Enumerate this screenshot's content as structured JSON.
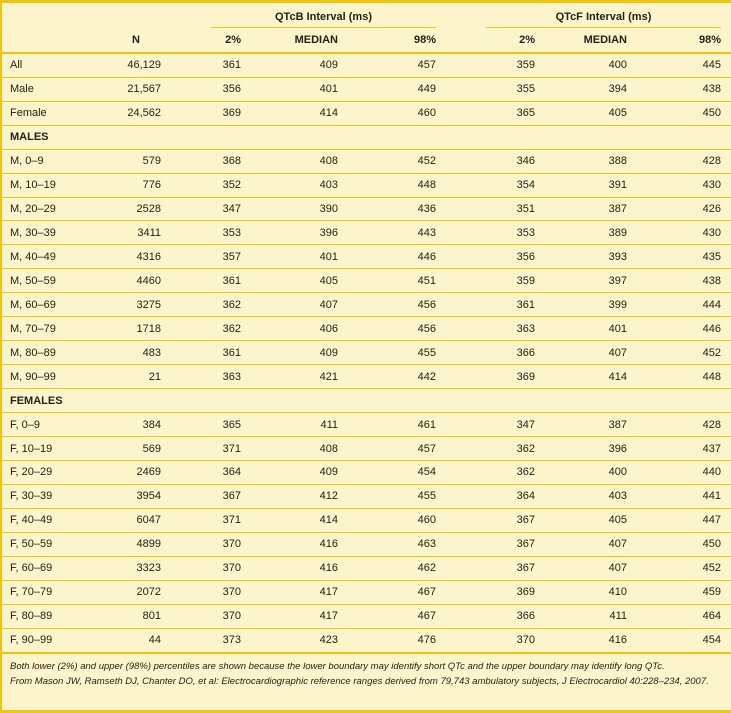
{
  "colors": {
    "background": "#FCF4CB",
    "line": "#F0C412",
    "text": "#262118"
  },
  "table": {
    "group_headers": [
      {
        "label": "QTcB Interval (ms)"
      },
      {
        "label": "QTcF Interval (ms)"
      }
    ],
    "column_headers": {
      "n": "N",
      "qtcb": [
        "2%",
        "MEDIAN",
        "98%"
      ],
      "qtcf": [
        "2%",
        "MEDIAN",
        "98%"
      ]
    },
    "rows": [
      {
        "type": "data",
        "label": "All",
        "n": "46,129",
        "qtcb": [
          "361",
          "409",
          "457"
        ],
        "qtcf": [
          "359",
          "400",
          "445"
        ]
      },
      {
        "type": "data",
        "label": "Male",
        "n": "21,567",
        "qtcb": [
          "356",
          "401",
          "449"
        ],
        "qtcf": [
          "355",
          "394",
          "438"
        ]
      },
      {
        "type": "data",
        "label": "Female",
        "n": "24,562",
        "qtcb": [
          "369",
          "414",
          "460"
        ],
        "qtcf": [
          "365",
          "405",
          "450"
        ]
      },
      {
        "type": "section",
        "label": "MALES"
      },
      {
        "type": "data",
        "label": "M, 0–9",
        "n": "579",
        "qtcb": [
          "368",
          "408",
          "452"
        ],
        "qtcf": [
          "346",
          "388",
          "428"
        ]
      },
      {
        "type": "data",
        "label": "M, 10–19",
        "n": "776",
        "qtcb": [
          "352",
          "403",
          "448"
        ],
        "qtcf": [
          "354",
          "391",
          "430"
        ]
      },
      {
        "type": "data",
        "label": "M, 20–29",
        "n": "2528",
        "qtcb": [
          "347",
          "390",
          "436"
        ],
        "qtcf": [
          "351",
          "387",
          "426"
        ]
      },
      {
        "type": "data",
        "label": "M, 30–39",
        "n": "3411",
        "qtcb": [
          "353",
          "396",
          "443"
        ],
        "qtcf": [
          "353",
          "389",
          "430"
        ]
      },
      {
        "type": "data",
        "label": "M, 40–49",
        "n": "4316",
        "qtcb": [
          "357",
          "401",
          "446"
        ],
        "qtcf": [
          "356",
          "393",
          "435"
        ]
      },
      {
        "type": "data",
        "label": "M, 50–59",
        "n": "4460",
        "qtcb": [
          "361",
          "405",
          "451"
        ],
        "qtcf": [
          "359",
          "397",
          "438"
        ]
      },
      {
        "type": "data",
        "label": "M, 60–69",
        "n": "3275",
        "qtcb": [
          "362",
          "407",
          "456"
        ],
        "qtcf": [
          "361",
          "399",
          "444"
        ]
      },
      {
        "type": "data",
        "label": "M, 70–79",
        "n": "1718",
        "qtcb": [
          "362",
          "406",
          "456"
        ],
        "qtcf": [
          "363",
          "401",
          "446"
        ]
      },
      {
        "type": "data",
        "label": "M, 80–89",
        "n": "483",
        "qtcb": [
          "361",
          "409",
          "455"
        ],
        "qtcf": [
          "366",
          "407",
          "452"
        ]
      },
      {
        "type": "data",
        "label": "M, 90–99",
        "n": "21",
        "qtcb": [
          "363",
          "421",
          "442"
        ],
        "qtcf": [
          "369",
          "414",
          "448"
        ]
      },
      {
        "type": "section",
        "label": "FEMALES"
      },
      {
        "type": "data",
        "label": "F, 0–9",
        "n": "384",
        "qtcb": [
          "365",
          "411",
          "461"
        ],
        "qtcf": [
          "347",
          "387",
          "428"
        ]
      },
      {
        "type": "data",
        "label": "F, 10–19",
        "n": "569",
        "qtcb": [
          "371",
          "408",
          "457"
        ],
        "qtcf": [
          "362",
          "396",
          "437"
        ]
      },
      {
        "type": "data",
        "label": "F, 20–29",
        "n": "2469",
        "qtcb": [
          "364",
          "409",
          "454"
        ],
        "qtcf": [
          "362",
          "400",
          "440"
        ]
      },
      {
        "type": "data",
        "label": "F, 30–39",
        "n": "3954",
        "qtcb": [
          "367",
          "412",
          "455"
        ],
        "qtcf": [
          "364",
          "403",
          "441"
        ]
      },
      {
        "type": "data",
        "label": "F, 40–49",
        "n": "6047",
        "qtcb": [
          "371",
          "414",
          "460"
        ],
        "qtcf": [
          "367",
          "405",
          "447"
        ]
      },
      {
        "type": "data",
        "label": "F, 50–59",
        "n": "4899",
        "qtcb": [
          "370",
          "416",
          "463"
        ],
        "qtcf": [
          "367",
          "407",
          "450"
        ]
      },
      {
        "type": "data",
        "label": "F, 60–69",
        "n": "3323",
        "qtcb": [
          "370",
          "416",
          "462"
        ],
        "qtcf": [
          "367",
          "407",
          "452"
        ]
      },
      {
        "type": "data",
        "label": "F, 70–79",
        "n": "2072",
        "qtcb": [
          "370",
          "417",
          "467"
        ],
        "qtcf": [
          "369",
          "410",
          "459"
        ]
      },
      {
        "type": "data",
        "label": "F, 80–89",
        "n": "801",
        "qtcb": [
          "370",
          "417",
          "467"
        ],
        "qtcf": [
          "366",
          "411",
          "464"
        ]
      },
      {
        "type": "data",
        "label": "F, 90–99",
        "n": "44",
        "qtcb": [
          "373",
          "423",
          "476"
        ],
        "qtcf": [
          "370",
          "416",
          "454"
        ]
      }
    ],
    "footnotes": [
      "Both lower (2%) and upper (98%) percentiles are shown because the lower boundary may identify short QTc and the upper boundary may identify long QTc.",
      "From Mason JW, Ramseth DJ, Chanter DO, et al: Electrocardiographic reference ranges derived from 79,743 ambulatory subjects, J Electrocardiol 40:228–234, 2007."
    ]
  }
}
